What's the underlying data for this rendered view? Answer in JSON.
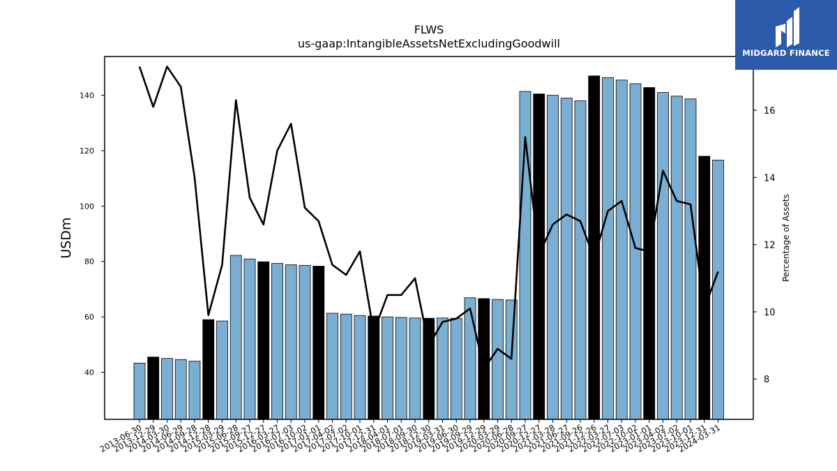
{
  "logo": {
    "text": "MIDGARD FINANCE",
    "color": "#2d5bab"
  },
  "chart_data": {
    "type": "bar",
    "title": "FLWS",
    "subtitle": "us-gaap:IntangibleAssetsNetExcludingGoodwill",
    "ylabel": "USDm",
    "y2label": "Percentage of Assets",
    "ylim": [
      23,
      154
    ],
    "y2lim": [
      6.8,
      17.6
    ],
    "yticks": [
      40,
      60,
      80,
      100,
      120,
      140
    ],
    "y2ticks": [
      8,
      10,
      12,
      14,
      16
    ],
    "categories": [
      "2013-06-30",
      "2013-12-29",
      "2014-03-30",
      "2014-06-29",
      "2014-09-28",
      "2014-12-28",
      "2015-03-29",
      "2015-06-28",
      "2015-09-27",
      "2015-12-27",
      "2016-03-27",
      "2016-07-03",
      "2016-10-02",
      "2017-01-01",
      "2017-04-02",
      "2017-07-02",
      "2017-10-01",
      "2017-12-31",
      "2018-04-01",
      "2018-07-01",
      "2018-09-30",
      "2018-12-30",
      "2019-03-31",
      "2019-06-30",
      "2019-09-29",
      "2019-12-29",
      "2020-03-29",
      "2020-06-28",
      "2020-09-27",
      "2020-12-27",
      "2021-03-28",
      "2021-06-27",
      "2021-09-26",
      "2021-12-26",
      "2022-03-27",
      "2022-07-03",
      "2022-10-02",
      "2023-01-01",
      "2023-04-02",
      "2023-07-02",
      "2023-10-01",
      "2023-12-31",
      "2024-03-31"
    ],
    "series": [
      {
        "type": "bar",
        "values": [
          43.3,
          45.5,
          45.0,
          44.6,
          44.0,
          59.0,
          58.5,
          82.2,
          80.9,
          79.9,
          79.3,
          78.8,
          78.6,
          78.3,
          61.3,
          61.0,
          60.5,
          60.3,
          60.0,
          59.8,
          59.6,
          59.5,
          59.6,
          59.5,
          66.9,
          66.6,
          66.3,
          66.1,
          141.4,
          140.5,
          140.0,
          139.0,
          138.0,
          147.0,
          146.4,
          145.5,
          144.2,
          142.8,
          141.0,
          139.7,
          138.7,
          118.0,
          116.6
        ],
        "highlight_indices": [
          1,
          5,
          9,
          13,
          17,
          21,
          25,
          29,
          33,
          37,
          41
        ],
        "colors": {
          "normal": "#7aaed3",
          "highlight": "#000000"
        }
      },
      {
        "type": "line",
        "axis": "right",
        "color": "#000000",
        "values": [
          17.3,
          16.1,
          17.3,
          16.7,
          14.0,
          9.9,
          11.4,
          16.3,
          13.4,
          12.6,
          14.8,
          15.6,
          13.1,
          12.7,
          11.4,
          11.1,
          11.8,
          9.4,
          10.5,
          10.5,
          11.0,
          9.0,
          9.7,
          9.8,
          10.1,
          8.3,
          8.9,
          8.6,
          15.2,
          11.7,
          12.6,
          12.9,
          12.7,
          11.6,
          13.0,
          13.3,
          11.9,
          11.8,
          14.2,
          13.3,
          13.2,
          10.1,
          11.2
        ]
      }
    ]
  }
}
